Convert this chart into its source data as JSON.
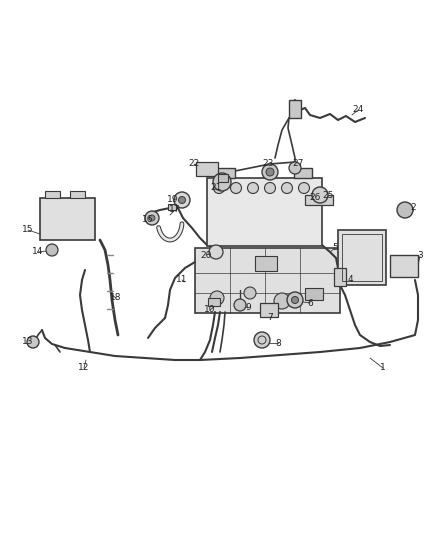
{
  "bg_color": "#ffffff",
  "line_color": "#3a3a3a",
  "fig_width": 4.38,
  "fig_height": 5.33,
  "dpi": 100,
  "label_fs": 6.5,
  "label_color": "#222222"
}
